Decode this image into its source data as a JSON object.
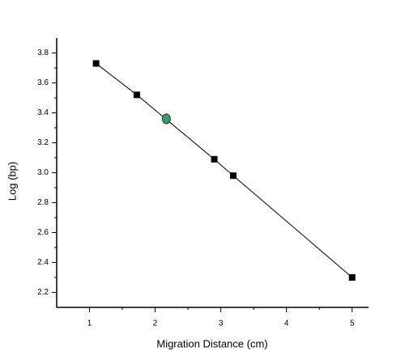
{
  "chart_data": {
    "type": "scatter",
    "x_label": "Migration Distance (cm)",
    "y_label": "Log (bp)",
    "xlim": [
      0.5,
      5.25
    ],
    "ylim": [
      2.1,
      3.9
    ],
    "xticks": [
      1,
      2,
      3,
      4,
      5
    ],
    "xminorticks": [
      1.5,
      2.5,
      3.5,
      4.5
    ],
    "yticks": [
      2.2,
      2.4,
      2.6,
      2.8,
      {
        "value": 3,
        "label": "3.0"
      },
      3.2,
      3.4,
      3.6,
      3.8
    ],
    "yminorticks": [
      2.3,
      2.5,
      2.7,
      2.9,
      3.1,
      3.3,
      3.5,
      3.7
    ],
    "series": [
      {
        "color": "#000000",
        "marker": "square",
        "line": true,
        "x": [
          1.1,
          1.72,
          2.9,
          3.19,
          5.0
        ],
        "values": [
          3.73,
          3.52,
          3.09,
          2.98,
          2.3
        ]
      },
      {
        "color": "#2e9e6a",
        "marker": "circle",
        "line": false,
        "x": [
          2.17
        ],
        "values": [
          3.36
        ]
      }
    ]
  }
}
